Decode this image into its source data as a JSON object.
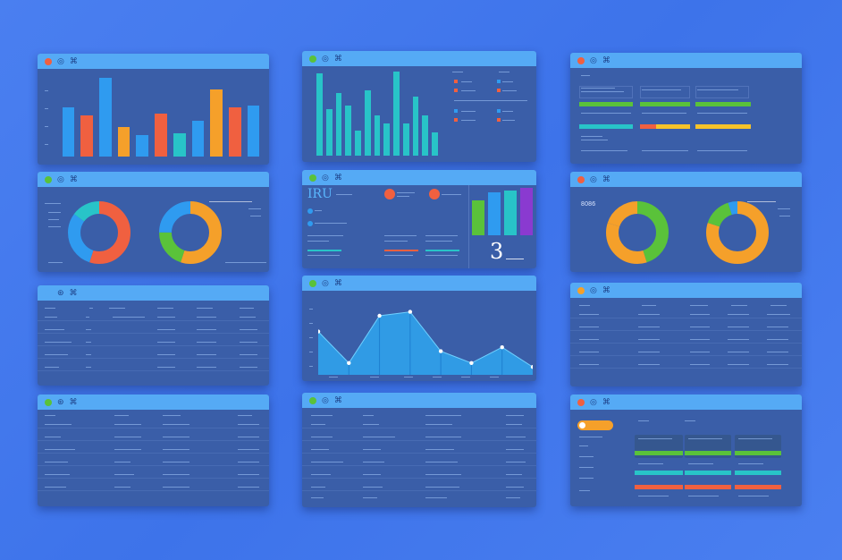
{
  "colors": {
    "background": "#4a7ff0",
    "panel": "#3a5ea8",
    "titlebar": "#55aaf5",
    "blue": "#2f9bf0",
    "orange": "#f5a02a",
    "red": "#f06040",
    "teal": "#28c4c8",
    "green": "#5ac23a",
    "purple": "#8a3ad0"
  },
  "panel_icons": [
    "close-icon",
    "settings-icon",
    "user-icon"
  ],
  "panel1": {
    "type": "bar",
    "values": [
      0.63,
      0.52,
      1.0,
      0.38,
      0.27,
      0.54,
      0.3,
      0.45,
      0.85,
      0.63,
      0.65
    ],
    "colors": [
      "#2f9bf0",
      "#f06040",
      "#2f9bf0",
      "#f5a02a",
      "#2f9bf0",
      "#f06040",
      "#28c4c8",
      "#2f9bf0",
      "#f5a02a",
      "#f06040",
      "#2f9bf0"
    ]
  },
  "panel2": {
    "type": "bar",
    "values": [
      0.98,
      0.55,
      0.75,
      0.6,
      0.3,
      0.78,
      0.48,
      0.38,
      1.0,
      0.38,
      0.7,
      0.48,
      0.28
    ],
    "color": "#28c4c8"
  },
  "panel5": {
    "big_text": "IRU",
    "big_number": "3",
    "bars": [
      0.7,
      0.85,
      0.9,
      0.95
    ],
    "bar_colors": [
      "#5ac23a",
      "#2f9bf0",
      "#28c4c8",
      "#8a3ad0"
    ]
  },
  "panel6": {
    "donut1": [
      0.55,
      0.3,
      0.15
    ],
    "donut2": [
      0.55,
      0.2,
      0.25
    ]
  },
  "panel7": {
    "donut1": [
      0.45,
      0.35,
      0.2
    ],
    "donut2": [
      0.8,
      0.15,
      0.05
    ],
    "label": "8086"
  },
  "panel9": {
    "type": "area",
    "points": [
      0.55,
      0.15,
      0.75,
      0.8,
      0.3,
      0.15,
      0.35,
      0.1
    ]
  }
}
